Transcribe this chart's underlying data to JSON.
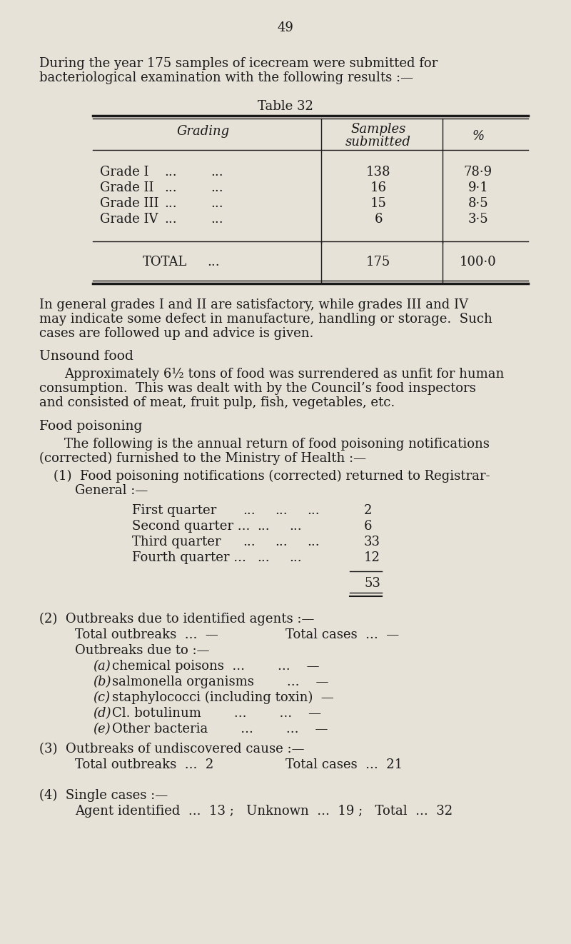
{
  "bg_color": "#e6e2d8",
  "text_color": "#1a1a1a",
  "page_number": "49",
  "table_title": "Table 32",
  "grades": [
    [
      "Grade I",
      "138",
      "78·9"
    ],
    [
      "Grade II",
      "16",
      "9·1"
    ],
    [
      "Grade III",
      "15",
      "8·5"
    ],
    [
      "Grade IV",
      "6",
      "3·5"
    ]
  ]
}
